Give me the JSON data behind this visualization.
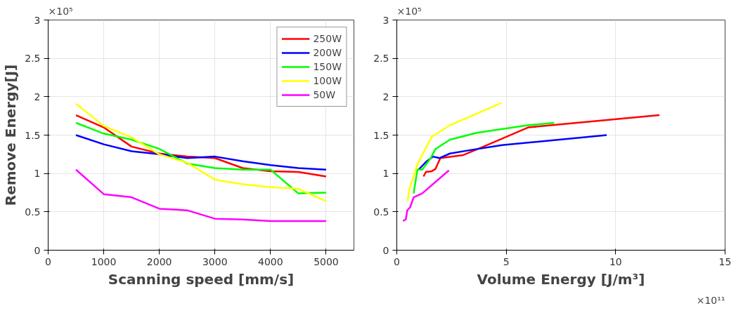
{
  "chart_data": [
    {
      "type": "line",
      "xlabel": "Scanning speed [mm/s]",
      "ylabel": "Remove Energy[J]",
      "annotations": [
        "×10⁵"
      ],
      "xlim": [
        0,
        5500
      ],
      "xticks": [
        0,
        1000,
        2000,
        3000,
        4000,
        5000
      ],
      "ylim": [
        0,
        3
      ],
      "yticks": [
        0,
        0.5,
        1,
        1.5,
        2,
        2.5,
        3
      ],
      "grid": true,
      "legend": "top right",
      "x": [
        500,
        1000,
        1500,
        2000,
        2500,
        3000,
        3500,
        4000,
        4500,
        5000
      ],
      "series": [
        {
          "name": "250W",
          "color": "#ff0000",
          "values": [
            1.76,
            1.6,
            1.35,
            1.26,
            1.22,
            1.2,
            1.07,
            1.03,
            1.02,
            0.96
          ]
        },
        {
          "name": "200W",
          "color": "#0000ff",
          "values": [
            1.5,
            1.38,
            1.29,
            1.25,
            1.2,
            1.22,
            1.16,
            1.11,
            1.07,
            1.05
          ]
        },
        {
          "name": "150W",
          "color": "#00ff00",
          "values": [
            1.66,
            1.52,
            1.44,
            1.32,
            1.13,
            1.07,
            1.05,
            1.05,
            0.74,
            0.75
          ]
        },
        {
          "name": "100W",
          "color": "#ffff00",
          "values": [
            1.91,
            1.62,
            1.47,
            1.25,
            1.14,
            0.92,
            0.86,
            0.82,
            0.8,
            0.64
          ]
        },
        {
          "name": "50W",
          "color": "#ff00ff",
          "values": [
            1.05,
            0.73,
            0.69,
            0.54,
            0.52,
            0.41,
            0.4,
            0.38,
            0.38,
            0.38
          ]
        }
      ]
    },
    {
      "type": "line",
      "xlabel": "Volume Energy [J/m³]",
      "annotations": [
        "×10⁵",
        "×10¹¹"
      ],
      "xlim": [
        0,
        15
      ],
      "xticks": [
        0,
        5,
        10,
        15
      ],
      "ylim": [
        0,
        3
      ],
      "yticks": [
        0,
        0.5,
        1,
        1.5,
        2,
        2.5,
        3
      ],
      "grid": true,
      "series": [
        {
          "color": "#ff0000",
          "x": [
            1.22,
            1.33,
            1.6,
            1.77,
            1.99,
            3.04,
            4.04,
            6.0,
            12.0
          ],
          "values": [
            0.96,
            1.02,
            1.03,
            1.06,
            1.2,
            1.24,
            1.36,
            1.6,
            1.76
          ]
        },
        {
          "color": "#0000ff",
          "x": [
            1.0,
            1.33,
            1.66,
            1.94,
            2.43,
            3.26,
            4.81,
            9.59
          ],
          "values": [
            1.05,
            1.15,
            1.22,
            1.2,
            1.26,
            1.3,
            1.37,
            1.5
          ]
        },
        {
          "color": "#00ff00",
          "x": [
            0.77,
            0.94,
            1.16,
            1.55,
            1.77,
            2.43,
            3.65,
            6.03,
            7.19
          ],
          "values": [
            0.74,
            1.05,
            1.05,
            1.2,
            1.32,
            1.44,
            1.53,
            1.63,
            1.66
          ]
        },
        {
          "color": "#ffff00",
          "x": [
            0.5,
            0.55,
            0.94,
            1.27,
            1.6,
            2.43,
            4.78
          ],
          "values": [
            0.64,
            0.77,
            1.12,
            1.3,
            1.48,
            1.63,
            1.92
          ]
        },
        {
          "color": "#ff00ff",
          "x": [
            0.28,
            0.41,
            0.48,
            0.61,
            0.77,
            1.16,
            2.38
          ],
          "values": [
            0.38,
            0.4,
            0.52,
            0.56,
            0.69,
            0.74,
            1.04
          ]
        }
      ]
    }
  ]
}
